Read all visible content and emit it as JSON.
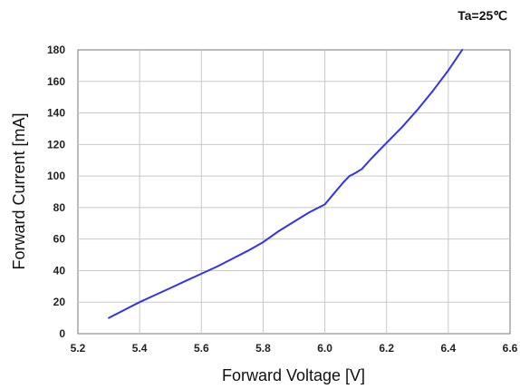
{
  "chart_data": {
    "type": "line",
    "title": "",
    "annotation": "Ta=25℃",
    "xlabel": "Forward Voltage [V]",
    "ylabel": "Forward Current [mA]",
    "xlim": [
      5.2,
      6.6
    ],
    "ylim": [
      0,
      180
    ],
    "x_ticks": [
      5.2,
      5.4,
      5.6,
      5.8,
      6.0,
      6.2,
      6.4,
      6.6
    ],
    "x_tick_labels": [
      "5.2",
      "5.4",
      "5.6",
      "5.8",
      "6.0",
      "6.2",
      "6.4",
      "6.6"
    ],
    "y_ticks": [
      0,
      20,
      40,
      60,
      80,
      100,
      120,
      140,
      160,
      180
    ],
    "y_tick_labels": [
      "0",
      "20",
      "40",
      "60",
      "80",
      "100",
      "120",
      "140",
      "160",
      "180"
    ],
    "grid": true,
    "series": [
      {
        "color": "#3333ee",
        "x": [
          5.3,
          5.35,
          5.4,
          5.45,
          5.5,
          5.55,
          5.6,
          5.65,
          5.7,
          5.75,
          5.8,
          5.85,
          5.9,
          5.95,
          6.0,
          6.03,
          6.06,
          6.08,
          6.1,
          6.12,
          6.15,
          6.2,
          6.25,
          6.3,
          6.35,
          6.4,
          6.445
        ],
        "y": [
          10,
          15,
          20,
          24.5,
          29,
          33.5,
          38,
          42.5,
          47.5,
          52.5,
          58,
          65,
          71,
          77,
          82,
          89,
          96,
          100,
          102,
          104.5,
          111,
          121,
          131,
          142,
          154,
          167,
          180
        ]
      }
    ]
  }
}
